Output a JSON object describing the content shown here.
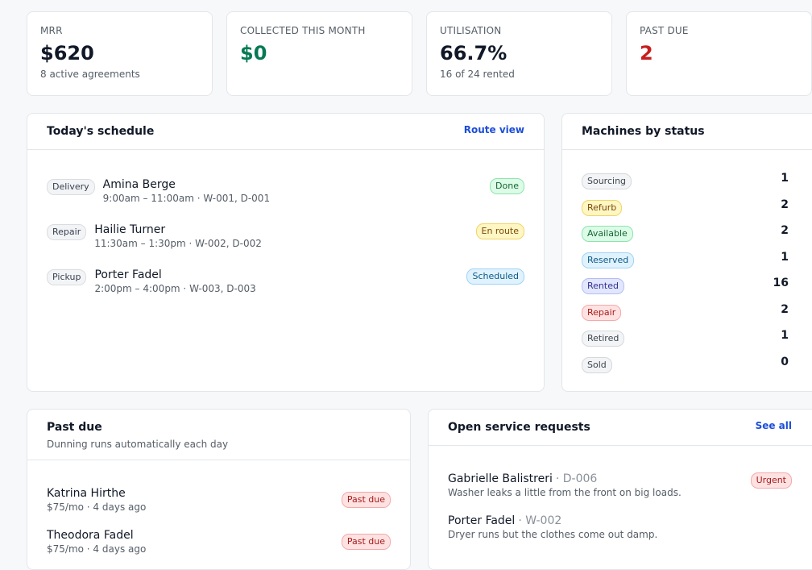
{
  "kpis": [
    {
      "label": "MRR",
      "value": "$620",
      "note": "8 active agreements",
      "tone": "default"
    },
    {
      "label": "COLLECTED THIS MONTH",
      "value": "$0",
      "tone": "green"
    },
    {
      "label": "UTILISATION",
      "value": "66.7%",
      "note": "16 of 24 rented",
      "tone": "default"
    },
    {
      "label": "PAST DUE",
      "value": "2",
      "tone": "red"
    }
  ],
  "schedule": {
    "title": "Today's schedule",
    "action": "Route view",
    "items": [
      {
        "type": "Delivery",
        "name": "Amina Berge",
        "detail": "9:00am – 11:00am · W-001, D-001",
        "status": "Done",
        "tone": "green"
      },
      {
        "type": "Repair",
        "name": "Hailie Turner",
        "detail": "11:30am – 1:30pm · W-002, D-002",
        "status": "En route",
        "tone": "yellow"
      },
      {
        "type": "Pickup",
        "name": "Porter Fadel",
        "detail": "2:00pm – 4:00pm · W-003, D-003",
        "status": "Scheduled",
        "tone": "blue"
      }
    ]
  },
  "machines": {
    "title": "Machines by status",
    "rows": [
      {
        "status": "Sourcing",
        "count": "1",
        "tone": "grey"
      },
      {
        "status": "Refurb",
        "count": "2",
        "tone": "yellow"
      },
      {
        "status": "Available",
        "count": "2",
        "tone": "green"
      },
      {
        "status": "Reserved",
        "count": "1",
        "tone": "blue"
      },
      {
        "status": "Rented",
        "count": "16",
        "tone": "indigo"
      },
      {
        "status": "Repair",
        "count": "2",
        "tone": "red"
      },
      {
        "status": "Retired",
        "count": "1",
        "tone": "grey"
      },
      {
        "status": "Sold",
        "count": "0",
        "tone": "grey"
      }
    ]
  },
  "past_due": {
    "title": "Past due",
    "subtitle": "Dunning runs automatically each day",
    "items": [
      {
        "name": "Katrina Hirthe",
        "detail": "$75/mo · 4 days ago",
        "status": "Past due",
        "tone": "red"
      },
      {
        "name": "Theodora Fadel",
        "detail": "$75/mo · 4 days ago",
        "status": "Past due",
        "tone": "red"
      }
    ]
  },
  "service": {
    "title": "Open service requests",
    "action": "See all",
    "items": [
      {
        "name": "Gabrielle Balistreri",
        "device": "· D-006",
        "description": "Washer leaks a little from the front on big loads.",
        "priority": "Urgent",
        "tone": "red"
      },
      {
        "name": "Porter Fadel",
        "device": "· W-002",
        "description": "Dryer runs but the clothes come out damp."
      }
    ]
  }
}
